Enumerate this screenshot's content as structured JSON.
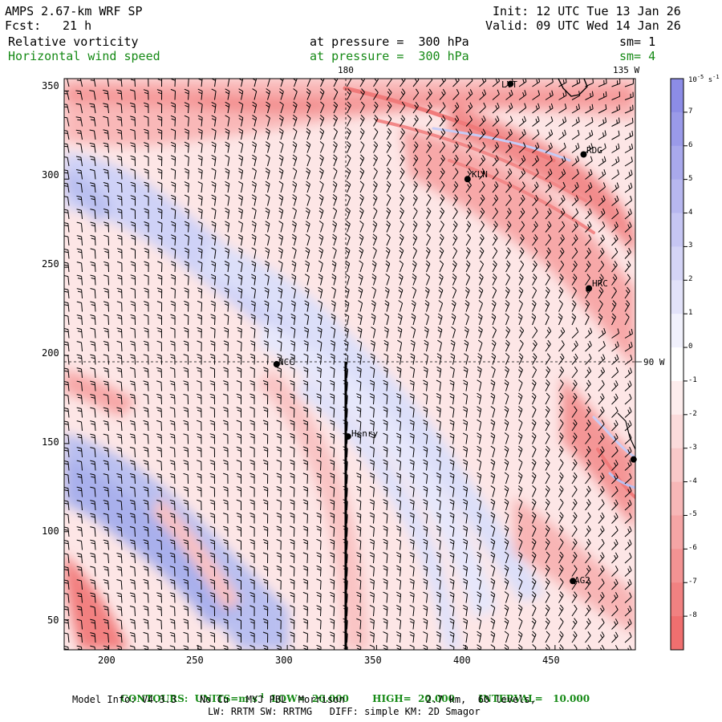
{
  "header": {
    "model": "AMPS 2.67-km WRF SP",
    "init": "Init: 12 UTC Tue 13 Jan 26",
    "fcst_label": "Fcst:",
    "fcst_value": "21 h",
    "valid": "Valid: 09 UTC Wed 14 Jan 26",
    "field1_name": "Relative vorticity",
    "field1_level": "at pressure =  300 hPa",
    "field1_sm": "sm= 1",
    "field2_name": "Horizontal wind speed",
    "field2_level": "at pressure =  300 hPa",
    "field2_sm": "sm= 4"
  },
  "map": {
    "x_ticks": [
      "200",
      "250",
      "300",
      "350",
      "400",
      "450"
    ],
    "y_ticks": [
      "350",
      "300",
      "250",
      "200",
      "150",
      "100",
      "50"
    ],
    "x_range": [
      175,
      495
    ],
    "y_range": [
      33,
      357
    ],
    "meridian_labels": {
      "top_180": "180",
      "top_135w": "135 W",
      "right_90w": "90 W"
    },
    "stations": [
      {
        "label": "LVT",
        "x": 425,
        "y": 354
      },
      {
        "label": "RDG",
        "x": 466,
        "y": 314
      },
      {
        "label": "KLN",
        "x": 401,
        "y": 300
      },
      {
        "label": "HRC",
        "x": 469,
        "y": 238
      },
      {
        "label": "NCC",
        "x": 294,
        "y": 195
      },
      {
        "label": "Henry",
        "x": 334,
        "y": 154
      },
      {
        "label": "AG2",
        "x": 460,
        "y": 72
      },
      {
        "label": "",
        "x": 494,
        "y": 141
      }
    ],
    "transect": {
      "x": 334,
      "y_from": 33,
      "y_to": 195
    },
    "colors": {
      "positive": "#8c8ce6",
      "negative": "#ef6f6f",
      "barb": "#000000"
    }
  },
  "colorbar": {
    "unit": "10^-5 s^-1",
    "labels": [
      "7",
      "6",
      "5",
      "4",
      "3",
      "2",
      "1",
      "0",
      "-1",
      "-2",
      "-3",
      "-4",
      "-5",
      "-6",
      "-7",
      "-8"
    ]
  },
  "footer": {
    "contours": "CONTOURS:  UNITS=m s",
    "contours_sup": "-1",
    "contours_rest": "  LOW=  20.000       HIGH=  20.000       INTERVAL=   10.000",
    "model_info": "Model Info: V4.3.3    No Cu   MYJ PBL  Morrison              2.7 km,  60 levels,",
    "model_info2": "LW: RRTM SW: RRTMG   DIFF: simple KM: 2D Smagor"
  }
}
